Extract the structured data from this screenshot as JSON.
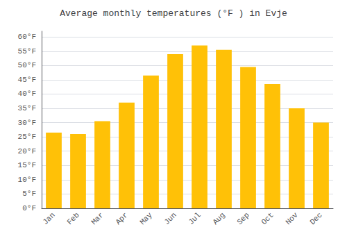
{
  "chart_data": {
    "type": "bar",
    "title": "Average monthly temperatures (°F ) in Evje",
    "categories": [
      "Jan",
      "Feb",
      "Mar",
      "Apr",
      "May",
      "Jun",
      "Jul",
      "Aug",
      "Sep",
      "Oct",
      "Nov",
      "Dec"
    ],
    "values": [
      26.5,
      26.0,
      30.5,
      37.0,
      46.5,
      54.0,
      57.0,
      55.5,
      49.5,
      43.5,
      35.0,
      30.0
    ],
    "color": "#FFC107",
    "ylim": [
      0,
      62
    ],
    "yticks": [
      {
        "value": 0,
        "label": "0°F"
      },
      {
        "value": 5,
        "label": "5°F"
      },
      {
        "value": 10,
        "label": "10°F"
      },
      {
        "value": 15,
        "label": "15°F"
      },
      {
        "value": 20,
        "label": "20°F"
      },
      {
        "value": 25,
        "label": "25°F"
      },
      {
        "value": 30,
        "label": "30°F"
      },
      {
        "value": 35,
        "label": "35°F"
      },
      {
        "value": 40,
        "label": "40°F"
      },
      {
        "value": 45,
        "label": "45°F"
      },
      {
        "value": 50,
        "label": "50°F"
      },
      {
        "value": 55,
        "label": "55°F"
      },
      {
        "value": 60,
        "label": "60°F"
      }
    ],
    "grid": true
  }
}
